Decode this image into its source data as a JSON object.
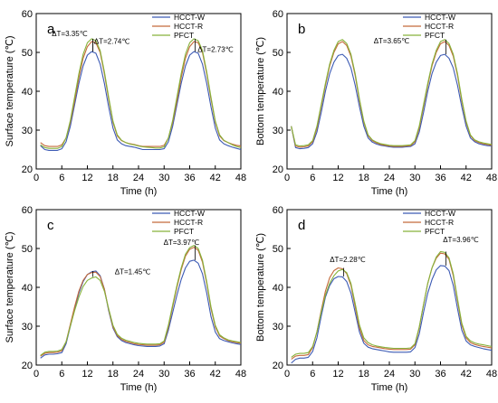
{
  "chart_data": [
    {
      "type": "line",
      "panel_label": "a",
      "xlabel": "Time (h)",
      "ylabel": "Surface temperature (℃)",
      "xlim": [
        0,
        48
      ],
      "ylim": [
        20,
        60
      ],
      "xticks": [
        0,
        6,
        12,
        18,
        24,
        30,
        36,
        42,
        48
      ],
      "yticks": [
        20,
        30,
        40,
        50,
        60
      ],
      "grid": false,
      "legend": "top-right",
      "x": [
        1,
        2,
        3,
        4,
        5,
        6,
        7,
        8,
        9,
        10,
        11,
        12,
        13,
        14,
        15,
        16,
        17,
        18,
        19,
        20,
        21,
        22,
        23,
        24,
        25,
        26,
        27,
        28,
        29,
        30,
        31,
        32,
        33,
        34,
        35,
        36,
        37,
        38,
        39,
        40,
        41,
        42,
        43,
        44,
        45,
        46,
        47,
        48
      ],
      "series": [
        {
          "name": "HCCT-W",
          "color": "#3c5ab4",
          "values": [
            26,
            25,
            24.8,
            24.8,
            24.8,
            25.2,
            27,
            31,
            36.5,
            42,
            46.5,
            49.3,
            50.2,
            49.8,
            47,
            42,
            36,
            30.5,
            27.5,
            26.5,
            26,
            25.8,
            25.6,
            25.3,
            25,
            25,
            25,
            25,
            25,
            25.2,
            27,
            31,
            36.5,
            42,
            46.5,
            49.3,
            50.2,
            49.8,
            47,
            42,
            36,
            30.5,
            27.5,
            26.5,
            26,
            25.6,
            25.3,
            25
          ]
        },
        {
          "name": "HCCT-R",
          "color": "#c46a3a",
          "values": [
            26.8,
            26,
            25.8,
            25.8,
            25.8,
            26.2,
            28,
            32,
            37.5,
            43.5,
            48.5,
            51.5,
            52.8,
            52.5,
            50,
            44.5,
            38,
            32,
            28.5,
            27.3,
            26.8,
            26.5,
            26.3,
            26,
            25.8,
            25.8,
            25.8,
            25.8,
            25.8,
            26.1,
            28,
            32,
            37.5,
            43.5,
            48.5,
            51.5,
            52.8,
            52.5,
            50,
            44.5,
            38,
            32,
            28.5,
            27.3,
            26.8,
            26.4,
            26.1,
            25.9
          ]
        },
        {
          "name": "PFCT",
          "color": "#86b23a",
          "values": [
            26.2,
            25.5,
            25.3,
            25.3,
            25.3,
            25.8,
            28,
            32.5,
            38.5,
            44.5,
            49.5,
            52.5,
            53.5,
            53,
            50.5,
            45,
            38.5,
            32.3,
            28.8,
            27.4,
            26.8,
            26.4,
            26.2,
            25.9,
            25.7,
            25.6,
            25.5,
            25.4,
            25.4,
            25.7,
            28,
            32.5,
            38.5,
            44.5,
            49.5,
            52.5,
            53.5,
            53,
            50.5,
            45,
            38.5,
            32.3,
            28.8,
            27.4,
            26.8,
            26.2,
            25.8,
            25.5
          ]
        }
      ],
      "annotations": [
        {
          "text": "ΔT=3.35℃",
          "x": 13,
          "y": 53.5
        },
        {
          "text": "ΔT=2.74℃",
          "x": 14,
          "y": 52.5
        },
        {
          "text": "ΔT=2.73℃",
          "x": 37,
          "y": 51.5
        }
      ]
    },
    {
      "type": "line",
      "panel_label": "b",
      "xlabel": "Time (h)",
      "ylabel": "Bottom temperature (℃)",
      "xlim": [
        0,
        48
      ],
      "ylim": [
        20,
        60
      ],
      "xticks": [
        0,
        6,
        12,
        18,
        24,
        30,
        36,
        42,
        48
      ],
      "yticks": [
        20,
        30,
        40,
        50,
        60
      ],
      "grid": false,
      "legend": "top-right",
      "x": [
        1,
        2,
        3,
        4,
        5,
        6,
        7,
        8,
        9,
        10,
        11,
        12,
        13,
        14,
        15,
        16,
        17,
        18,
        19,
        20,
        21,
        22,
        23,
        24,
        25,
        26,
        27,
        28,
        29,
        30,
        31,
        32,
        33,
        34,
        35,
        36,
        37,
        38,
        39,
        40,
        41,
        42,
        43,
        44,
        45,
        46,
        47,
        48
      ],
      "series": [
        {
          "name": "HCCT-W",
          "color": "#3c5ab4",
          "values": [
            31,
            25.5,
            25.2,
            25.3,
            25.5,
            26.5,
            29.5,
            34.5,
            40,
            44.5,
            47.5,
            49.2,
            49.5,
            48.5,
            46,
            41.5,
            36,
            31,
            28,
            26.9,
            26.4,
            26.1,
            25.9,
            25.7,
            25.6,
            25.6,
            25.6,
            25.7,
            25.8,
            26.5,
            29.5,
            34.5,
            40,
            44.5,
            47.5,
            49.2,
            49.5,
            48.5,
            46,
            41.5,
            36,
            31,
            28,
            27,
            26.5,
            26.2,
            26,
            25.9
          ]
        },
        {
          "name": "HCCT-R",
          "color": "#c46a3a",
          "values": [
            31,
            25.9,
            25.6,
            25.7,
            25.9,
            27,
            30.5,
            36,
            41.5,
            46.5,
            50,
            52.2,
            52.8,
            51.8,
            49,
            44,
            37.5,
            32,
            28.6,
            27.3,
            26.7,
            26.3,
            26.1,
            25.9,
            25.8,
            25.8,
            25.8,
            25.9,
            26,
            27,
            30.5,
            36,
            41.5,
            46.5,
            50,
            52.2,
            52.8,
            51.8,
            49,
            44,
            37.5,
            32,
            28.6,
            27.3,
            26.8,
            26.5,
            26.3,
            26.1
          ]
        },
        {
          "name": "PFCT",
          "color": "#86b23a",
          "values": [
            31,
            26.2,
            25.9,
            26,
            26.2,
            27.3,
            31,
            36.5,
            42,
            47,
            50.5,
            52.8,
            53.3,
            52.3,
            49.5,
            44.5,
            38,
            32.3,
            28.8,
            27.5,
            26.9,
            26.5,
            26.3,
            26.1,
            26,
            26,
            26,
            26.1,
            26.2,
            27.3,
            31,
            36.5,
            42,
            47,
            50.5,
            52.8,
            53.3,
            52.3,
            49.5,
            44.5,
            38,
            32.3,
            28.8,
            27.5,
            27,
            26.7,
            26.5,
            26.3
          ]
        }
      ],
      "annotations": [
        {
          "text": "ΔT=3.65℃",
          "x": 25,
          "y": 53
        }
      ]
    },
    {
      "type": "line",
      "panel_label": "c",
      "xlabel": "Time (h)",
      "ylabel": "Surface temperature (℃)",
      "xlim": [
        0,
        48
      ],
      "ylim": [
        20,
        60
      ],
      "xticks": [
        0,
        6,
        12,
        18,
        24,
        30,
        36,
        42,
        48
      ],
      "yticks": [
        20,
        30,
        40,
        50,
        60
      ],
      "grid": false,
      "legend": "top-right",
      "x": [
        1,
        2,
        3,
        4,
        5,
        6,
        7,
        8,
        9,
        10,
        11,
        12,
        13,
        14,
        15,
        16,
        17,
        18,
        19,
        20,
        21,
        22,
        23,
        24,
        25,
        26,
        27,
        28,
        29,
        30,
        31,
        32,
        33,
        34,
        35,
        36,
        37,
        38,
        39,
        40,
        41,
        42,
        43,
        44,
        45,
        46,
        47,
        48
      ],
      "series": [
        {
          "name": "HCCT-W",
          "color": "#3c5ab4",
          "values": [
            21.8,
            22.6,
            22.8,
            22.8,
            22.9,
            23.2,
            25.5,
            30,
            34.5,
            38.5,
            41.5,
            43.3,
            44,
            44.2,
            43,
            39.5,
            34,
            29.5,
            27.3,
            26.3,
            25.8,
            25.5,
            25.2,
            25,
            24.9,
            24.8,
            24.8,
            24.8,
            24.9,
            25.5,
            29,
            33.5,
            38,
            42,
            45,
            46.7,
            47,
            46.2,
            43.5,
            38.5,
            32.5,
            28.5,
            26.8,
            26.3,
            26,
            25.7,
            25.5,
            25.3
          ]
        },
        {
          "name": "HCCT-R",
          "color": "#c46a3a",
          "values": [
            22.3,
            23,
            23.2,
            23.2,
            23.3,
            23.7,
            26,
            30.5,
            35,
            39,
            41.8,
            43.3,
            43.8,
            43.9,
            42.8,
            39.5,
            34.3,
            29.8,
            27.6,
            26.6,
            26.1,
            25.8,
            25.5,
            25.3,
            25.2,
            25.1,
            25.1,
            25.1,
            25.2,
            25.9,
            29.8,
            35,
            40,
            44.5,
            48,
            49.8,
            50.3,
            49.5,
            46.5,
            41,
            34.5,
            29.8,
            27.5,
            26.8,
            26.3,
            26,
            25.8,
            25.6
          ]
        },
        {
          "name": "PFCT",
          "color": "#86b23a",
          "values": [
            22.5,
            23.3,
            23.5,
            23.5,
            23.6,
            24,
            26,
            30,
            34,
            37.5,
            40.2,
            41.8,
            42.4,
            42.7,
            41.8,
            39,
            34.5,
            30.2,
            27.9,
            26.9,
            26.4,
            26.1,
            25.8,
            25.6,
            25.5,
            25.4,
            25.4,
            25.4,
            25.5,
            26.2,
            30.3,
            35.5,
            40.5,
            45,
            48.5,
            50.2,
            50.8,
            50,
            47,
            41.5,
            35,
            30.2,
            27.8,
            27,
            26.5,
            26.2,
            26,
            25.8
          ]
        }
      ],
      "annotations": [
        {
          "text": "ΔT=1.45℃",
          "x": 18,
          "y": 44.5
        },
        {
          "text": "ΔT=3.97℃",
          "x": 32,
          "y": 50.5
        }
      ]
    },
    {
      "type": "line",
      "panel_label": "d",
      "xlabel": "Time (h)",
      "ylabel": "Bottom temperature (℃)",
      "xlim": [
        0,
        48
      ],
      "ylim": [
        20,
        60
      ],
      "xticks": [
        0,
        6,
        12,
        18,
        24,
        30,
        36,
        42,
        48
      ],
      "yticks": [
        20,
        30,
        40,
        50,
        60
      ],
      "grid": false,
      "legend": "top-right",
      "x": [
        1,
        2,
        3,
        4,
        5,
        6,
        7,
        8,
        9,
        10,
        11,
        12,
        13,
        14,
        15,
        16,
        17,
        18,
        19,
        20,
        21,
        22,
        23,
        24,
        25,
        26,
        27,
        28,
        29,
        30,
        31,
        32,
        33,
        34,
        35,
        36,
        37,
        38,
        39,
        40,
        41,
        42,
        43,
        44,
        45,
        46,
        47,
        48
      ],
      "series": [
        {
          "name": "HCCT-W",
          "color": "#3c5ab4",
          "values": [
            20.5,
            21.5,
            21.8,
            21.8,
            22,
            23.5,
            27,
            32.5,
            37.5,
            40.5,
            42.2,
            42.8,
            42.7,
            41.5,
            38.5,
            33.5,
            28.5,
            25.6,
            24.6,
            24.2,
            24,
            23.8,
            23.6,
            23.4,
            23.3,
            23.3,
            23.3,
            23.3,
            23.4,
            24.5,
            28,
            33.5,
            38.5,
            42,
            44.5,
            45.6,
            45.5,
            44.3,
            40.5,
            34.5,
            29,
            26.2,
            25.2,
            24.8,
            24.5,
            24.2,
            24,
            23.8
          ]
        },
        {
          "name": "HCCT-R",
          "color": "#c46a3a",
          "values": [
            21.5,
            22.3,
            22.5,
            22.5,
            22.7,
            24.5,
            28.5,
            34,
            39,
            42.5,
            44.3,
            45,
            44.8,
            43.5,
            40.5,
            35,
            29.5,
            26.3,
            25.2,
            24.8,
            24.6,
            24.4,
            24.2,
            24.1,
            24,
            24,
            24,
            24,
            24.1,
            25.2,
            29.5,
            35.5,
            41,
            45,
            47.5,
            48.8,
            48.6,
            47.2,
            43,
            36.5,
            30.3,
            27,
            25.8,
            25.3,
            25,
            24.8,
            24.6,
            24.4
          ]
        },
        {
          "name": "PFCT",
          "color": "#86b23a",
          "values": [
            22,
            22.8,
            23,
            23,
            23.2,
            24.8,
            28.5,
            33.5,
            38,
            41,
            43,
            44.2,
            44.6,
            43.8,
            41,
            35.8,
            30.3,
            27,
            25.8,
            25.2,
            24.9,
            24.7,
            24.5,
            24.4,
            24.3,
            24.3,
            24.3,
            24.3,
            24.4,
            25.5,
            29.8,
            35.5,
            41,
            45,
            47.8,
            49.2,
            49,
            47.6,
            43.5,
            37,
            30.8,
            27.4,
            26.2,
            25.7,
            25.4,
            25.2,
            25,
            24.8
          ]
        }
      ],
      "annotations": [
        {
          "text": "ΔT=2.28℃",
          "x": 13,
          "y": 46
        },
        {
          "text": "ΔT=3.96℃",
          "x": 37,
          "y": 50
        }
      ]
    }
  ]
}
